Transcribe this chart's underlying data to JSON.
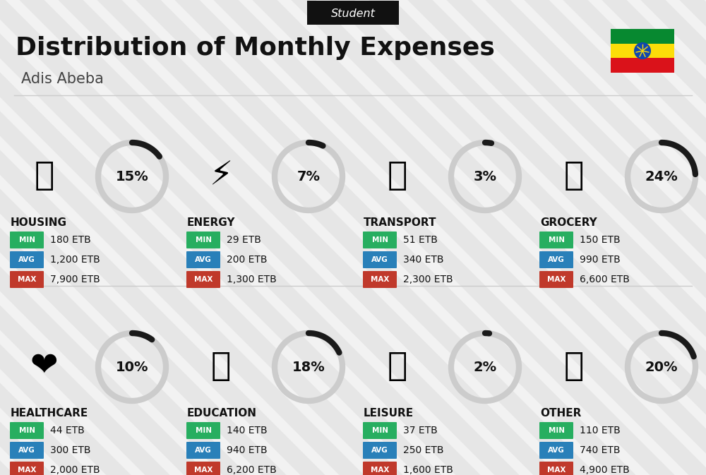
{
  "title": "Distribution of Monthly Expenses",
  "subtitle": "Adis Abeba",
  "header_label": "Student",
  "bg_color": "#f2f2f2",
  "categories": [
    {
      "name": "HOUSING",
      "pct": 15,
      "icon": "🏗",
      "min": "180 ETB",
      "avg": "1,200 ETB",
      "max": "7,900 ETB",
      "col": 0,
      "row": 0
    },
    {
      "name": "ENERGY",
      "pct": 7,
      "icon": "⚡",
      "min": "29 ETB",
      "avg": "200 ETB",
      "max": "1,300 ETB",
      "col": 1,
      "row": 0
    },
    {
      "name": "TRANSPORT",
      "pct": 3,
      "icon": "🚌",
      "min": "51 ETB",
      "avg": "340 ETB",
      "max": "2,300 ETB",
      "col": 2,
      "row": 0
    },
    {
      "name": "GROCERY",
      "pct": 24,
      "icon": "🛒",
      "min": "150 ETB",
      "avg": "990 ETB",
      "max": "6,600 ETB",
      "col": 3,
      "row": 0
    },
    {
      "name": "HEALTHCARE",
      "pct": 10,
      "icon": "❤️",
      "min": "44 ETB",
      "avg": "300 ETB",
      "max": "2,000 ETB",
      "col": 0,
      "row": 1
    },
    {
      "name": "EDUCATION",
      "pct": 18,
      "icon": "🎓",
      "min": "140 ETB",
      "avg": "940 ETB",
      "max": "6,200 ETB",
      "col": 1,
      "row": 1
    },
    {
      "name": "LEISURE",
      "pct": 2,
      "icon": "🛍️",
      "min": "37 ETB",
      "avg": "250 ETB",
      "max": "1,600 ETB",
      "col": 2,
      "row": 1
    },
    {
      "name": "OTHER",
      "pct": 20,
      "icon": "💰",
      "min": "110 ETB",
      "avg": "740 ETB",
      "max": "4,900 ETB",
      "col": 3,
      "row": 1
    }
  ],
  "color_min": "#27ae60",
  "color_avg": "#2980b9",
  "color_max": "#c0392b",
  "color_arc_filled": "#1a1a1a",
  "color_arc_empty": "#cccccc",
  "flag_green": "#078930",
  "flag_yellow": "#FCDD09",
  "flag_red": "#DA121A",
  "flag_blue": "#0F47AF"
}
